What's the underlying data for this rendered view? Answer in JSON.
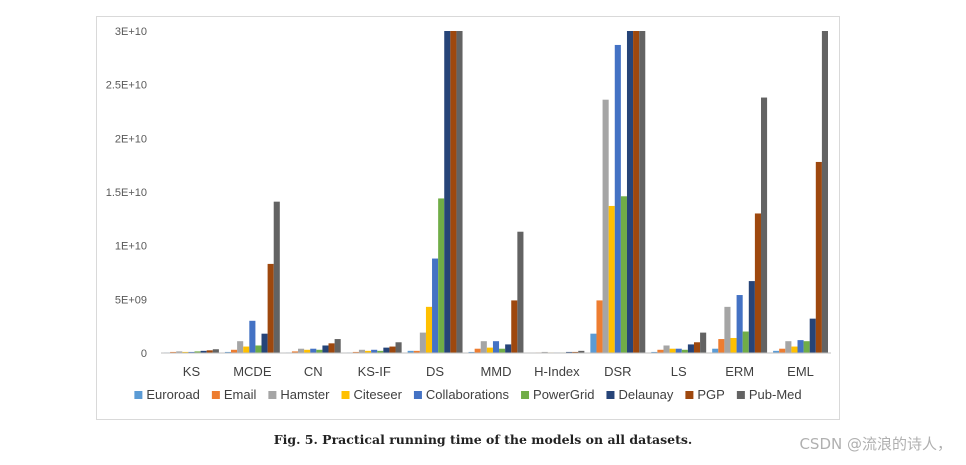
{
  "caption": "Fig. 5. Practical running time of the models on all datasets.",
  "watermark": "CSDN @流浪的诗人，",
  "chart_data": {
    "type": "bar",
    "categories": [
      "KS",
      "MCDE",
      "CN",
      "KS-IF",
      "DS",
      "MMD",
      "H-Index",
      "DSR",
      "LS",
      "ERM",
      "EML"
    ],
    "ylim": [
      0,
      30000000000
    ],
    "yticks": [
      0,
      5000000000,
      10000000000,
      15000000000,
      20000000000,
      25000000000,
      30000000000
    ],
    "ytick_labels": [
      "0",
      "5E+09",
      "1E+10",
      "1.5E+10",
      "2E+10",
      "2.5E+10",
      "3E+10"
    ],
    "grid": false,
    "legend_position": "bottom",
    "series": [
      {
        "name": "Euroroad",
        "color": "#5b9bd5",
        "values": [
          50000000,
          100000000,
          50000000,
          50000000,
          200000000,
          100000000,
          20000000,
          1800000000,
          100000000,
          400000000,
          200000000
        ]
      },
      {
        "name": "Email",
        "color": "#ed7d31",
        "values": [
          100000000,
          300000000,
          150000000,
          100000000,
          200000000,
          400000000,
          50000000,
          4900000000,
          300000000,
          1300000000,
          400000000
        ]
      },
      {
        "name": "Hamster",
        "color": "#a5a5a5",
        "values": [
          150000000,
          1100000000,
          400000000,
          300000000,
          1900000000,
          1100000000,
          100000000,
          23600000000,
          700000000,
          4300000000,
          1100000000
        ]
      },
      {
        "name": "Citeseer",
        "color": "#ffc000",
        "values": [
          100000000,
          600000000,
          300000000,
          200000000,
          4300000000,
          500000000,
          50000000,
          13700000000,
          400000000,
          1400000000,
          600000000
        ]
      },
      {
        "name": "Collaborations",
        "color": "#4472c4",
        "values": [
          100000000,
          3000000000,
          400000000,
          300000000,
          8800000000,
          1100000000,
          50000000,
          28700000000,
          400000000,
          5400000000,
          1200000000
        ]
      },
      {
        "name": "PowerGrid",
        "color": "#70ad47",
        "values": [
          150000000,
          700000000,
          300000000,
          200000000,
          14400000000,
          400000000,
          50000000,
          14600000000,
          300000000,
          2000000000,
          1100000000
        ]
      },
      {
        "name": "Delaunay",
        "color": "#264478",
        "values": [
          200000000,
          1800000000,
          700000000,
          500000000,
          30000000000,
          800000000,
          100000000,
          30000000000,
          800000000,
          6700000000,
          3200000000
        ]
      },
      {
        "name": "PGP",
        "color": "#9e480e",
        "values": [
          250000000,
          8300000000,
          900000000,
          600000000,
          30000000000,
          4900000000,
          100000000,
          30000000000,
          1000000000,
          13000000000,
          17800000000
        ]
      },
      {
        "name": "Pub-Med",
        "color": "#636363",
        "values": [
          350000000,
          14100000000,
          1300000000,
          1000000000,
          30000000000,
          11300000000,
          200000000,
          30000000000,
          1900000000,
          23800000000,
          30000000000
        ]
      }
    ]
  }
}
